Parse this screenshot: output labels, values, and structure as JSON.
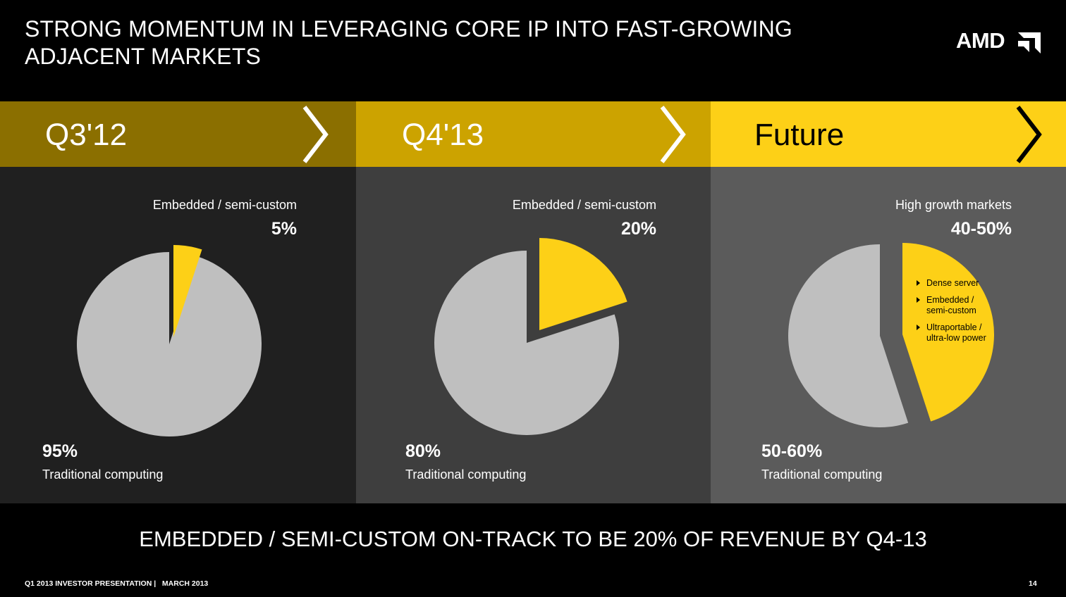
{
  "header": {
    "title_line1": "STRONG MOMENTUM IN LEVERAGING CORE IP INTO FAST-GROWING",
    "title_line2": "ADJACENT MARKETS",
    "logo_text": "AMD",
    "logo_icon": "amd-arrow-icon"
  },
  "colors": {
    "background": "#000000",
    "yellow": "#FDD017",
    "gray_slice": "#BFBFBF",
    "banner_q3": "#8B6F00",
    "banner_q4": "#CCA300",
    "banner_future": "#FDD017",
    "panel_q3": "#202020",
    "panel_q4": "#3E3E3E",
    "panel_future": "#5B5B5B"
  },
  "chart_data": [
    {
      "type": "pie",
      "title": "Q3'12",
      "slices": [
        {
          "label": "Embedded / semi-custom",
          "value": 5,
          "display": "5%"
        },
        {
          "label": "Traditional computing",
          "value": 95,
          "display": "95%"
        }
      ]
    },
    {
      "type": "pie",
      "title": "Q4'13",
      "slices": [
        {
          "label": "Embedded / semi-custom",
          "value": 20,
          "display": "20%"
        },
        {
          "label": "Traditional computing",
          "value": 80,
          "display": "80%"
        }
      ]
    },
    {
      "type": "pie",
      "title": "Future",
      "slices": [
        {
          "label": "High growth markets",
          "value": 45,
          "display": "40-50%",
          "items": [
            "Dense server",
            "Embedded / semi-custom",
            "Ultraportable / ultra-low power"
          ]
        },
        {
          "label": "Traditional computing",
          "value": 55,
          "display": "50-60%"
        }
      ]
    }
  ],
  "tagline": "EMBEDDED / SEMI-CUSTOM ON-TRACK TO BE 20% OF REVENUE BY Q4-13",
  "footer": {
    "text": "Q1 2013 INVESTOR PRESENTATION |   MARCH 2013",
    "page_number": "14"
  }
}
